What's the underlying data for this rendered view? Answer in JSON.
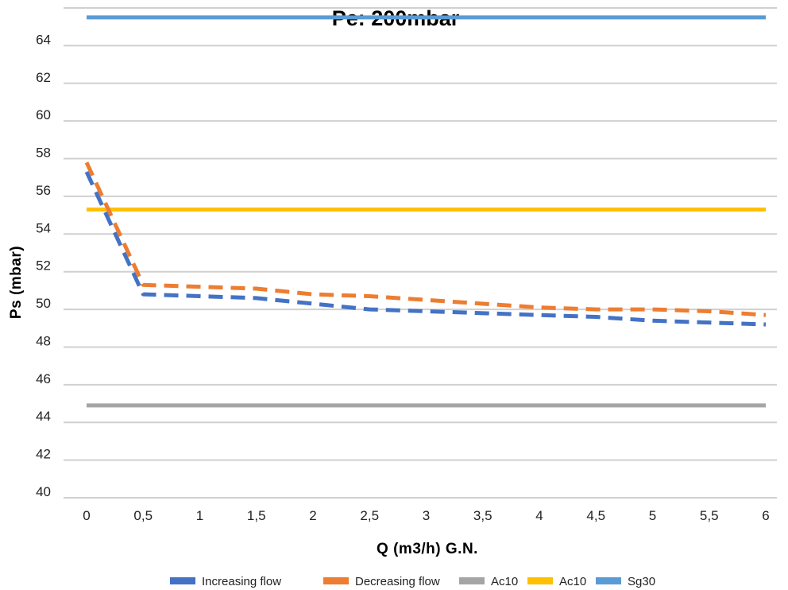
{
  "chart_data": {
    "type": "line",
    "title": "Pe: 200mbar",
    "xlabel": "Q (m3/h) G.N.",
    "ylabel": "Ps (mbar)",
    "categories": [
      "0",
      "0,5",
      "1",
      "1,5",
      "2",
      "2,5",
      "3",
      "3,5",
      "4",
      "4,5",
      "5",
      "5,5",
      "6"
    ],
    "y_ticks": [
      "40",
      "42",
      "44",
      "46",
      "48",
      "50",
      "52",
      "54",
      "56",
      "58",
      "60",
      "62",
      "64"
    ],
    "ylim": [
      40,
      66
    ],
    "grid": true,
    "legend_position": "bottom",
    "series": [
      {
        "name": "Increasing flow",
        "color": "#4472C4",
        "style": "dashed",
        "values": [
          57.3,
          50.8,
          50.7,
          50.6,
          50.3,
          50.0,
          49.9,
          49.8,
          49.7,
          49.6,
          49.4,
          49.3,
          49.2
        ]
      },
      {
        "name": "Decreasing  flow",
        "color": "#ED7D31",
        "style": "dashed",
        "values": [
          57.8,
          51.3,
          51.2,
          51.1,
          50.8,
          50.7,
          50.5,
          50.3,
          50.1,
          50.0,
          50.0,
          49.9,
          49.7
        ]
      },
      {
        "name": "Ac10",
        "color": "#A5A5A5",
        "style": "solid",
        "values": [
          44.9,
          44.9,
          44.9,
          44.9,
          44.9,
          44.9,
          44.9,
          44.9,
          44.9,
          44.9,
          44.9,
          44.9,
          44.9
        ]
      },
      {
        "name": "Ac10",
        "color": "#FFC000",
        "style": "solid",
        "values": [
          55.3,
          55.3,
          55.3,
          55.3,
          55.3,
          55.3,
          55.3,
          55.3,
          55.3,
          55.3,
          55.3,
          55.3,
          55.3
        ]
      },
      {
        "name": "Sg30",
        "color": "#5B9BD5",
        "style": "solid",
        "values": [
          65.5,
          65.5,
          65.5,
          65.5,
          65.5,
          65.5,
          65.5,
          65.5,
          65.5,
          65.5,
          65.5,
          65.5,
          65.5
        ]
      }
    ]
  }
}
